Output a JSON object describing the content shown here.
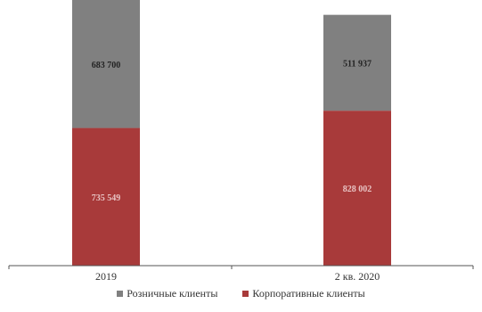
{
  "chart_data": {
    "type": "bar",
    "stacked": true,
    "categories": [
      "2019",
      "2 кв. 2020"
    ],
    "series": [
      {
        "name": "Корпоративные клиенты",
        "color": "#a83a3a",
        "values": [
          735549,
          828002
        ],
        "labels": [
          "735 549",
          "828 002"
        ]
      },
      {
        "name": "Розничные клиенты",
        "color": "#808080",
        "values": [
          683700,
          511937
        ],
        "labels": [
          "683 700",
          "511 937"
        ]
      }
    ],
    "title": "",
    "xlabel": "",
    "ylabel": "",
    "ylim": [
      0,
      1419249
    ],
    "grid": false,
    "legend_position": "bottom"
  },
  "legend": {
    "items": [
      {
        "label": "Розничные клиенты",
        "color": "#808080"
      },
      {
        "label": "Корпоративные клиенты",
        "color": "#a83a3a"
      }
    ]
  }
}
